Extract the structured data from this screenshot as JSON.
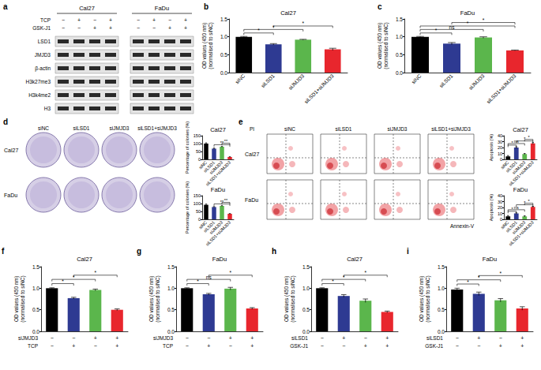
{
  "western_blot": {
    "panel": "a",
    "cell_lines": [
      "Cal27",
      "FaDu"
    ],
    "treatments": [
      {
        "name": "TCP",
        "marks": [
          "−",
          "+",
          "−",
          "+"
        ]
      },
      {
        "name": "GSK-J1",
        "marks": [
          "−",
          "−",
          "+",
          "+"
        ]
      }
    ],
    "proteins": [
      "LSD1",
      "JMJD3",
      "β-actin",
      "H3k27me3",
      "H3k4me2",
      "H3"
    ]
  },
  "colony_images": {
    "panel": "d",
    "columns": [
      "siNC",
      "siLSD1",
      "siJMJD3",
      "siLSD1+siJMJD3"
    ],
    "rows": [
      "Cal27",
      "FaDu"
    ]
  },
  "flow_cytometry": {
    "panel": "e",
    "columns": [
      "siNC",
      "siLSD1",
      "siJMJD3",
      "siLSD1+siJMJD3"
    ],
    "rows": [
      "Cal27",
      "FaDu"
    ],
    "y_axis_label": "PI",
    "x_axis_label": "Annexin-V"
  },
  "chart_data": [
    {
      "type": "bar",
      "panel": "b",
      "title": "Cal27",
      "ylabel": "OD values (450 nm)\n(normalised to siNC)",
      "categories": [
        "siNC",
        "siLSD1",
        "siJMJD3",
        "siLSD1+siJMJD3"
      ],
      "values": [
        1.0,
        0.79,
        0.92,
        0.65
      ],
      "errors": [
        0.01,
        0.02,
        0.01,
        0.03
      ],
      "colors": [
        "#000000",
        "#2e3a92",
        "#5bb64c",
        "#e8262d"
      ],
      "ylim": [
        0,
        1.5
      ],
      "yticks": [
        {
          "value": 0,
          "label": "0.0"
        },
        {
          "value": 0.5,
          "label": "0.5"
        },
        {
          "value": 1,
          "label": "1.0"
        },
        {
          "value": 1.5,
          "label": "1.5"
        }
      ],
      "significance": [
        {
          "from": 0,
          "to": 1,
          "label": "*"
        },
        {
          "from": 0,
          "to": 2,
          "label": "*"
        },
        {
          "from": 1,
          "to": 3,
          "label": "*"
        }
      ]
    },
    {
      "type": "bar",
      "panel": "c",
      "title": "FaDu",
      "ylabel": "OD values (450 nm)\n(normalised to siNC)",
      "categories": [
        "siNC",
        "siLSD1",
        "siJMJD3",
        "siLSD1+siJMJD3"
      ],
      "values": [
        1.0,
        0.81,
        0.98,
        0.62
      ],
      "errors": [
        0.01,
        0.03,
        0.02,
        0.01
      ],
      "colors": [
        "#000000",
        "#2e3a92",
        "#5bb64c",
        "#e8262d"
      ],
      "ylim": [
        0,
        1.5
      ],
      "yticks": [
        {
          "value": 0,
          "label": "0.0"
        },
        {
          "value": 0.5,
          "label": "0.5"
        },
        {
          "value": 1,
          "label": "1.0"
        },
        {
          "value": 1.5,
          "label": "1.5"
        }
      ],
      "significance": [
        {
          "from": 0,
          "to": 1,
          "label": "*"
        },
        {
          "from": 0,
          "to": 2,
          "label": "ns"
        },
        {
          "from": 0,
          "to": 3,
          "label": "*"
        },
        {
          "from": 1,
          "to": 3,
          "label": "*"
        }
      ]
    },
    {
      "type": "bar",
      "title": "Cal27",
      "ylabel": "Percentage of colonies (%)",
      "categories": [
        "siNC",
        "siLSD1",
        "siJMJD3",
        "siLSD1+siJMJD3"
      ],
      "values": [
        100,
        68,
        80,
        15
      ],
      "errors": [
        5,
        4,
        3,
        2
      ],
      "colors": [
        "#000000",
        "#2e3a92",
        "#5bb64c",
        "#e8262d"
      ],
      "ylim": [
        0,
        150
      ],
      "yticks": [
        0,
        50,
        100,
        150
      ],
      "significance": [
        {
          "from": 1,
          "to": 3,
          "label": "**"
        },
        {
          "from": 2,
          "to": 3,
          "label": "**"
        }
      ]
    },
    {
      "type": "bar",
      "title": "FaDu",
      "ylabel": "Percentage of colonies (%)",
      "categories": [
        "siNC",
        "siLSD1",
        "siJMJD3",
        "siLSD1+siJMJD3"
      ],
      "values": [
        92,
        78,
        85,
        35
      ],
      "errors": [
        5,
        3,
        3,
        2
      ],
      "colors": [
        "#000000",
        "#2e3a92",
        "#5bb64c",
        "#e8262d"
      ],
      "ylim": [
        0,
        150
      ],
      "yticks": [
        0,
        50,
        100,
        150
      ],
      "significance": [
        {
          "from": 1,
          "to": 3,
          "label": "**"
        },
        {
          "from": 2,
          "to": 3,
          "label": "**"
        }
      ]
    },
    {
      "type": "bar",
      "title": "Cal27",
      "ylabel": "Apoptosis (%)",
      "categories": [
        "siNC",
        "siLSD1",
        "siJMJD3",
        "siLSD1+siJMJD3"
      ],
      "values": [
        5,
        20,
        9,
        27
      ],
      "errors": [
        1.5,
        1.5,
        1,
        1.5
      ],
      "colors": [
        "#000000",
        "#2e3a92",
        "#5bb64c",
        "#e8262d"
      ],
      "ylim": [
        0,
        40
      ],
      "yticks": [
        0,
        10,
        20,
        30,
        40
      ],
      "significance": [
        {
          "from": 0,
          "to": 1,
          "label": "*"
        },
        {
          "from": 0,
          "to": 2,
          "label": "ns"
        },
        {
          "from": 1,
          "to": 3,
          "label": "*"
        },
        {
          "from": 2,
          "to": 3,
          "label": "*"
        }
      ]
    },
    {
      "type": "bar",
      "title": "FaDu",
      "ylabel": "Apoptosis (%)",
      "categories": [
        "siNC",
        "siLSD1",
        "siJMJD3",
        "siLSD1+siJMJD3"
      ],
      "values": [
        5,
        10,
        5,
        21
      ],
      "errors": [
        1.5,
        1,
        1,
        1
      ],
      "colors": [
        "#000000",
        "#2e3a92",
        "#5bb64c",
        "#e8262d"
      ],
      "ylim": [
        0,
        40
      ],
      "yticks": [
        0,
        10,
        20,
        30,
        40
      ],
      "significance": [
        {
          "from": 0,
          "to": 1,
          "label": "*"
        },
        {
          "from": 0,
          "to": 2,
          "label": "ns"
        },
        {
          "from": 1,
          "to": 3,
          "label": "*"
        },
        {
          "from": 2,
          "to": 3,
          "label": "*"
        }
      ]
    },
    {
      "type": "bar",
      "panel": "f",
      "title": "Cal27",
      "ylabel": "OD values (450 nm)\n(normalised to siNC)",
      "treatments": [
        {
          "name": "siJMJD3",
          "marks": [
            "−",
            "−",
            "+",
            "+"
          ]
        },
        {
          "name": "TCP",
          "marks": [
            "−",
            "+",
            "−",
            "+"
          ]
        }
      ],
      "values": [
        1.0,
        0.77,
        0.96,
        0.5
      ],
      "errors": [
        0.01,
        0.02,
        0.02,
        0.02
      ],
      "colors": [
        "#000000",
        "#2e3a92",
        "#5bb64c",
        "#e8262d"
      ],
      "ylim": [
        0,
        1.5
      ],
      "yticks": [
        {
          "value": 0,
          "label": "0.0"
        },
        {
          "value": 0.5,
          "label": "0.5"
        },
        {
          "value": 1,
          "label": "1.0"
        },
        {
          "value": 1.5,
          "label": "1.5"
        }
      ],
      "significance": [
        {
          "from": 0,
          "to": 1,
          "label": "*"
        },
        {
          "from": 0,
          "to": 2,
          "label": "*"
        },
        {
          "from": 1,
          "to": 3,
          "label": "*"
        }
      ]
    },
    {
      "type": "bar",
      "panel": "g",
      "title": "FaDu",
      "ylabel": "OD values (450 nm)\n(normalised to siNC)",
      "treatments": [
        {
          "name": "siJMJD3",
          "marks": [
            "−",
            "−",
            "+",
            "+"
          ]
        },
        {
          "name": "TCP",
          "marks": [
            "−",
            "+",
            "−",
            "+"
          ]
        }
      ],
      "values": [
        1.0,
        0.86,
        0.99,
        0.53
      ],
      "errors": [
        0.01,
        0.02,
        0.03,
        0.02
      ],
      "colors": [
        "#000000",
        "#2e3a92",
        "#5bb64c",
        "#e8262d"
      ],
      "ylim": [
        0,
        1.5
      ],
      "yticks": [
        {
          "value": 0,
          "label": "0.0"
        },
        {
          "value": 0.5,
          "label": "0.5"
        },
        {
          "value": 1,
          "label": "1.0"
        },
        {
          "value": 1.5,
          "label": "1.5"
        }
      ],
      "significance": [
        {
          "from": 0,
          "to": 1,
          "label": "*"
        },
        {
          "from": 0,
          "to": 2,
          "label": "ns"
        },
        {
          "from": 1,
          "to": 3,
          "label": "*"
        }
      ]
    },
    {
      "type": "bar",
      "panel": "h",
      "title": "Cal27",
      "ylabel": "OD values (450 nm)\n(normalised to siNC)",
      "treatments": [
        {
          "name": "siLSD1",
          "marks": [
            "−",
            "+",
            "−",
            "+"
          ]
        },
        {
          "name": "GSK-J1",
          "marks": [
            "−",
            "−",
            "+",
            "+"
          ]
        }
      ],
      "values": [
        1.0,
        0.82,
        0.71,
        0.45
      ],
      "errors": [
        0.01,
        0.03,
        0.04,
        0.02
      ],
      "colors": [
        "#000000",
        "#2e3a92",
        "#5bb64c",
        "#e8262d"
      ],
      "ylim": [
        0,
        1.5
      ],
      "yticks": [
        {
          "value": 0,
          "label": "0.0"
        },
        {
          "value": 0.5,
          "label": "0.5"
        },
        {
          "value": 1,
          "label": "1.0"
        },
        {
          "value": 1.5,
          "label": "1.5"
        }
      ],
      "significance": [
        {
          "from": 0,
          "to": 1,
          "label": "*"
        },
        {
          "from": 0,
          "to": 2,
          "label": "*"
        },
        {
          "from": 1,
          "to": 3,
          "label": "*"
        }
      ]
    },
    {
      "type": "bar",
      "panel": "i",
      "title": "FaDu",
      "ylabel": "OD values (450 nm)\n(normalised to siNC)",
      "treatments": [
        {
          "name": "siLSD1",
          "marks": [
            "−",
            "+",
            "−",
            "+"
          ]
        },
        {
          "name": "GSK-J1",
          "marks": [
            "−",
            "−",
            "+",
            "+"
          ]
        }
      ],
      "values": [
        0.97,
        0.87,
        0.72,
        0.53
      ],
      "errors": [
        0.03,
        0.04,
        0.04,
        0.04
      ],
      "colors": [
        "#000000",
        "#2e3a92",
        "#5bb64c",
        "#e8262d"
      ],
      "ylim": [
        0,
        1.5
      ],
      "yticks": [
        {
          "value": 0,
          "label": "0.0"
        },
        {
          "value": 0.5,
          "label": "0.5"
        },
        {
          "value": 1,
          "label": "1.0"
        },
        {
          "value": 1.5,
          "label": "1.5"
        }
      ],
      "significance": [
        {
          "from": 0,
          "to": 1,
          "label": "*"
        },
        {
          "from": 0,
          "to": 2,
          "label": "*"
        },
        {
          "from": 1,
          "to": 3,
          "label": "*"
        }
      ]
    }
  ]
}
